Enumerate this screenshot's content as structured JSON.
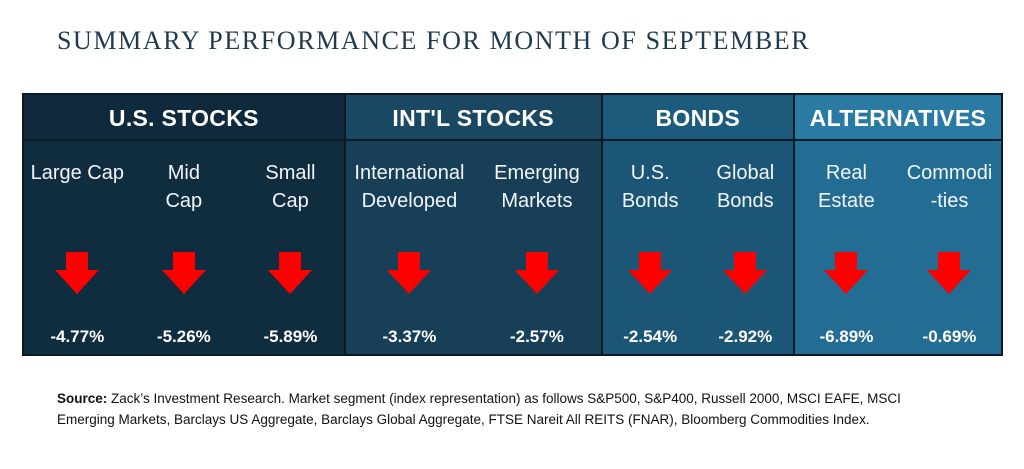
{
  "title": "SUMMARY PERFORMANCE FOR MONTH OF SEPTEMBER",
  "colors": {
    "arrow": "#ff0000"
  },
  "groups": [
    {
      "name": "U.S. STOCKS",
      "cols": [
        {
          "label": "Large Cap",
          "value": "-4.77%",
          "icon": "down-arrow-icon"
        },
        {
          "label": "Mid\nCap",
          "value": "-5.26%",
          "icon": "down-arrow-icon"
        },
        {
          "label": "Small\nCap",
          "value": "-5.89%",
          "icon": "down-arrow-icon"
        }
      ]
    },
    {
      "name": "INT'L STOCKS",
      "cols": [
        {
          "label": "International\nDeveloped",
          "value": "-3.37%",
          "icon": "down-arrow-icon"
        },
        {
          "label": "Emerging\nMarkets",
          "value": "-2.57%",
          "icon": "down-arrow-icon"
        }
      ]
    },
    {
      "name": "BONDS",
      "cols": [
        {
          "label": "U.S.\nBonds",
          "value": "-2.54%",
          "icon": "down-arrow-icon"
        },
        {
          "label": "Global\nBonds",
          "value": "-2.92%",
          "icon": "down-arrow-icon"
        }
      ]
    },
    {
      "name": "ALTERNATIVES",
      "cols": [
        {
          "label": "Real\nEstate",
          "value": "-6.89%",
          "icon": "down-arrow-icon"
        },
        {
          "label": "Commodi\n-ties",
          "value": "-0.69%",
          "icon": "down-arrow-icon"
        }
      ]
    }
  ],
  "source": {
    "prefix": "Source:",
    "text": " Zack’s Investment Research. Market segment (index representation) as follows S&P500, S&P400, Russell 2000, MSCI EAFE, MSCI Emerging Markets, Barclays US Aggregate, Barclays Global Aggregate, FTSE Nareit All REITS (FNAR), Bloomberg Commodities Index."
  }
}
